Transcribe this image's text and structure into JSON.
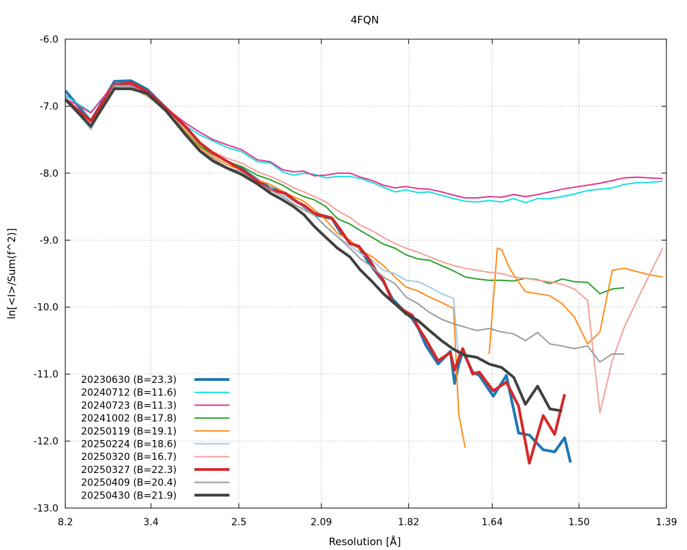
{
  "chart_data": {
    "type": "line",
    "title": "4FQN",
    "xlabel": "Resolution [Å]",
    "ylabel": "ln[<I>/Sum(f^2)]",
    "x_unit_note": "",
    "xlim": [
      0.0148,
      0.5175
    ],
    "ylim": [
      -13.0,
      -6.0
    ],
    "grid": true,
    "legend_position": "bottom-left",
    "x_ticks": [
      "8.2",
      "3.4",
      "2.5",
      "2.09",
      "1.82",
      "1.64",
      "1.50",
      "1.39"
    ],
    "y_ticks": [
      "-6.0",
      "-7.0",
      "-8.0",
      "-9.0",
      "-10.0",
      "-11.0",
      "-12.0",
      "-13.0"
    ],
    "series": [
      {
        "name": "20230630 (B=23.3)",
        "color": "#1f77b4",
        "width": 4,
        "x": [
          0.0149,
          0.0362,
          0.0559,
          0.0697,
          0.0834,
          0.0986,
          0.1151,
          0.1274,
          0.1384,
          0.1507,
          0.1623,
          0.1754,
          0.1864,
          0.1987,
          0.2096,
          0.2144,
          0.2233,
          0.2378,
          0.2452,
          0.2528,
          0.2603,
          0.2688,
          0.2747,
          0.2808,
          0.2885,
          0.2978,
          0.3049,
          0.3102,
          0.3163,
          0.3266,
          0.3369,
          0.3403,
          0.3438,
          0.3472,
          0.3555,
          0.361,
          0.3727,
          0.3837,
          0.3939,
          0.4029,
          0.4145,
          0.4241,
          0.4324,
          0.4373
        ],
        "y": [
          -6.77,
          -7.22,
          -6.63,
          -6.62,
          -6.75,
          -7.02,
          -7.3,
          -7.55,
          -7.7,
          -7.83,
          -7.93,
          -8.1,
          -8.22,
          -8.3,
          -8.44,
          -8.5,
          -8.62,
          -8.68,
          -8.89,
          -9.03,
          -9.11,
          -9.34,
          -9.48,
          -9.62,
          -9.88,
          -10.05,
          -10.17,
          -10.32,
          -10.57,
          -10.85,
          -10.66,
          -11.14,
          -10.86,
          -10.66,
          -10.97,
          -11.02,
          -11.33,
          -11.02,
          -11.88,
          -11.91,
          -12.13,
          -12.16,
          -11.95,
          -12.32
        ]
      },
      {
        "name": "20240712 (B=11.6)",
        "color": "#17dfe0",
        "width": 2,
        "x": [
          0.0149,
          0.0362,
          0.0559,
          0.0697,
          0.0834,
          0.0986,
          0.1151,
          0.1274,
          0.1384,
          0.1507,
          0.1623,
          0.1754,
          0.1864,
          0.1967,
          0.2057,
          0.2144,
          0.2233,
          0.2328,
          0.2425,
          0.2528,
          0.2618,
          0.2715,
          0.2808,
          0.2905,
          0.2998,
          0.3097,
          0.3194,
          0.3294,
          0.3396,
          0.3493,
          0.359,
          0.3693,
          0.3797,
          0.3899,
          0.3996,
          0.4098,
          0.4201,
          0.4303,
          0.4406,
          0.4516,
          0.4619,
          0.4722,
          0.4823,
          0.4929,
          0.5038,
          0.5144
        ],
        "y": [
          -6.84,
          -7.09,
          -6.68,
          -6.7,
          -6.82,
          -7.05,
          -7.29,
          -7.43,
          -7.52,
          -7.62,
          -7.68,
          -7.83,
          -7.85,
          -7.98,
          -8.03,
          -8.0,
          -8.02,
          -8.07,
          -8.05,
          -8.05,
          -8.08,
          -8.14,
          -8.21,
          -8.28,
          -8.25,
          -8.29,
          -8.28,
          -8.33,
          -8.38,
          -8.42,
          -8.43,
          -8.41,
          -8.43,
          -8.38,
          -8.44,
          -8.38,
          -8.38,
          -8.35,
          -8.31,
          -8.26,
          -8.24,
          -8.22,
          -8.17,
          -8.14,
          -8.14,
          -8.12
        ]
      },
      {
        "name": "20240723 (B=11.3)",
        "color": "#e0358f",
        "width": 2,
        "x": [
          0.0149,
          0.0362,
          0.0559,
          0.0697,
          0.0834,
          0.0986,
          0.1151,
          0.1274,
          0.1384,
          0.1507,
          0.1623,
          0.1754,
          0.1864,
          0.1967,
          0.2057,
          0.2144,
          0.2233,
          0.2328,
          0.2425,
          0.2528,
          0.2618,
          0.2715,
          0.2808,
          0.2905,
          0.2998,
          0.3097,
          0.3194,
          0.3294,
          0.3396,
          0.3493,
          0.359,
          0.3693,
          0.3797,
          0.3899,
          0.3996,
          0.4098,
          0.4201,
          0.4303,
          0.4406,
          0.4516,
          0.4619,
          0.4722,
          0.4823,
          0.4929,
          0.5038,
          0.5144
        ],
        "y": [
          -6.88,
          -7.1,
          -6.66,
          -6.68,
          -6.8,
          -7.02,
          -7.25,
          -7.39,
          -7.5,
          -7.58,
          -7.65,
          -7.8,
          -7.83,
          -7.95,
          -7.98,
          -7.97,
          -8.04,
          -8.03,
          -8.0,
          -8.0,
          -8.06,
          -8.11,
          -8.18,
          -8.22,
          -8.2,
          -8.23,
          -8.24,
          -8.28,
          -8.33,
          -8.37,
          -8.37,
          -8.35,
          -8.36,
          -8.32,
          -8.35,
          -8.32,
          -8.28,
          -8.24,
          -8.21,
          -8.18,
          -8.15,
          -8.11,
          -8.07,
          -8.06,
          -8.07,
          -8.08
        ]
      },
      {
        "name": "20241002 (B=17.8)",
        "color": "#2ca02c",
        "width": 2,
        "x": [
          0.0149,
          0.0362,
          0.0559,
          0.0697,
          0.0834,
          0.0986,
          0.1151,
          0.1274,
          0.1384,
          0.1507,
          0.1623,
          0.1754,
          0.1864,
          0.1967,
          0.2057,
          0.2144,
          0.2233,
          0.2328,
          0.2425,
          0.2528,
          0.2618,
          0.2715,
          0.2808,
          0.2905,
          0.2998,
          0.3097,
          0.3194,
          0.3294,
          0.3396,
          0.3493,
          0.359,
          0.3693,
          0.3797,
          0.3899,
          0.3996,
          0.4098,
          0.4201,
          0.4303,
          0.4406,
          0.4516,
          0.4619,
          0.4722,
          0.4823
        ],
        "y": [
          -6.86,
          -7.28,
          -6.71,
          -6.7,
          -6.82,
          -7.06,
          -7.37,
          -7.6,
          -7.72,
          -7.83,
          -7.9,
          -8.03,
          -8.1,
          -8.18,
          -8.28,
          -8.35,
          -8.4,
          -8.5,
          -8.68,
          -8.76,
          -8.86,
          -8.96,
          -9.06,
          -9.12,
          -9.22,
          -9.28,
          -9.3,
          -9.38,
          -9.46,
          -9.55,
          -9.58,
          -9.6,
          -9.6,
          -9.61,
          -9.57,
          -9.59,
          -9.65,
          -9.58,
          -9.62,
          -9.63,
          -9.8,
          -9.73,
          -9.71
        ]
      },
      {
        "name": "20250119 (B=19.1)",
        "color": "#ff8c1a",
        "width": 2,
        "x": [
          0.0149,
          0.0362,
          0.0559,
          0.0697,
          0.0834,
          0.0986,
          0.1151,
          0.1274,
          0.1384,
          0.1507,
          0.1623,
          0.1754,
          0.1864,
          0.1967,
          0.2057,
          0.2144,
          0.2233,
          0.2328,
          0.2425,
          0.2528,
          0.2618,
          0.2715,
          0.2808,
          0.2905,
          0.2998,
          0.3097,
          0.3194,
          0.3294,
          0.3396,
          0.3438,
          0.3493,
          0.3555,
          0.359,
          0.3645,
          0.3693,
          0.3761,
          0.3797,
          0.3858,
          0.3899,
          0.3996,
          0.4098,
          0.4201,
          0.4303,
          0.4406,
          0.4516,
          0.4619,
          0.4722,
          0.4823,
          0.4929,
          0.5038,
          0.5144
        ],
        "y": [
          -6.9,
          -7.3,
          -6.7,
          -6.72,
          -6.85,
          -7.07,
          -7.38,
          -7.62,
          -7.75,
          -7.88,
          -7.95,
          -8.1,
          -8.17,
          -8.27,
          -8.35,
          -8.42,
          -8.55,
          -8.7,
          -8.9,
          -9.0,
          -9.15,
          -9.25,
          -9.38,
          -9.55,
          -9.7,
          -9.76,
          -9.85,
          -9.93,
          -10.02,
          -11.6,
          -12.1,
          null,
          null,
          null,
          -10.7,
          -9.12,
          -9.14,
          -9.4,
          -9.52,
          -9.77,
          -9.8,
          -9.83,
          -9.95,
          -10.15,
          -10.55,
          -10.37,
          -9.45,
          -9.42,
          -9.47,
          -9.52,
          -9.55
        ]
      },
      {
        "name": "20250224 (B=18.6)",
        "color": "#9ecae9",
        "width": 2,
        "x": [
          0.0149,
          0.0362,
          0.0559,
          0.0697,
          0.0834,
          0.0986,
          0.1151,
          0.1274,
          0.1384,
          0.1507,
          0.1623,
          0.1754,
          0.1864,
          0.1967,
          0.2057,
          0.2144,
          0.2233,
          0.2328,
          0.2425,
          0.2528,
          0.2618,
          0.2715,
          0.2808,
          0.2905,
          0.2998,
          0.3097,
          0.3194,
          0.3294,
          0.3396,
          0.3438
        ],
        "y": [
          -6.87,
          -7.35,
          -6.7,
          -6.71,
          -6.84,
          -7.08,
          -7.4,
          -7.65,
          -7.78,
          -7.92,
          -7.98,
          -8.15,
          -8.22,
          -8.32,
          -8.42,
          -8.5,
          -8.63,
          -8.8,
          -8.95,
          -9.08,
          -9.2,
          -9.3,
          -9.45,
          -9.5,
          -9.6,
          -9.62,
          -9.7,
          -9.8,
          -9.87,
          -10.8
        ]
      },
      {
        "name": "20250320 (B=16.7)",
        "color": "#f4a09a",
        "width": 2,
        "x": [
          0.0149,
          0.0362,
          0.0559,
          0.0697,
          0.0834,
          0.0986,
          0.1151,
          0.1274,
          0.1384,
          0.1507,
          0.1623,
          0.1754,
          0.1864,
          0.1967,
          0.2057,
          0.2144,
          0.2233,
          0.2328,
          0.2425,
          0.2528,
          0.2618,
          0.2715,
          0.2808,
          0.2905,
          0.2998,
          0.3097,
          0.3194,
          0.3294,
          0.3396,
          0.3493,
          0.359,
          0.3693,
          0.3797,
          0.3899,
          0.3996,
          0.4098,
          0.4201,
          0.4303,
          0.4406,
          0.4516,
          0.4619,
          0.4722,
          0.4823,
          0.4929,
          0.5038,
          0.5144
        ],
        "y": [
          -6.86,
          -7.27,
          -6.69,
          -6.7,
          -6.82,
          -7.05,
          -7.33,
          -7.56,
          -7.68,
          -7.78,
          -7.85,
          -7.98,
          -8.05,
          -8.13,
          -8.22,
          -8.28,
          -8.35,
          -8.43,
          -8.56,
          -8.66,
          -8.78,
          -8.86,
          -8.96,
          -9.05,
          -9.12,
          -9.18,
          -9.25,
          -9.32,
          -9.38,
          -9.42,
          -9.45,
          -9.48,
          -9.5,
          -9.55,
          -9.57,
          -9.6,
          -9.62,
          -9.66,
          -9.73,
          -9.9,
          -11.58,
          -10.8,
          -10.3,
          -9.9,
          -9.5,
          -9.12
        ]
      },
      {
        "name": "20250327 (B=22.3)",
        "color": "#d62728",
        "width": 4,
        "x": [
          0.0149,
          0.0362,
          0.0559,
          0.0697,
          0.0834,
          0.0986,
          0.1151,
          0.1274,
          0.1384,
          0.1507,
          0.1623,
          0.1754,
          0.1864,
          0.1987,
          0.2096,
          0.2144,
          0.2233,
          0.2378,
          0.2452,
          0.2528,
          0.2603,
          0.2688,
          0.2747,
          0.2808,
          0.2885,
          0.2978,
          0.3049,
          0.3102,
          0.3163,
          0.3266,
          0.3369,
          0.3403,
          0.3438,
          0.3472,
          0.3555,
          0.361,
          0.3727,
          0.3837,
          0.3939,
          0.4029,
          0.4145,
          0.4241,
          0.4324
        ],
        "y": [
          -6.9,
          -7.22,
          -6.68,
          -6.65,
          -6.78,
          -7.02,
          -7.3,
          -7.55,
          -7.7,
          -7.83,
          -7.95,
          -8.12,
          -8.25,
          -8.3,
          -8.44,
          -8.48,
          -8.6,
          -8.67,
          -8.85,
          -9.05,
          -9.09,
          -9.28,
          -9.46,
          -9.6,
          -9.92,
          -10.05,
          -10.12,
          -10.31,
          -10.48,
          -10.8,
          -10.68,
          -10.94,
          -10.77,
          -10.62,
          -11.0,
          -10.97,
          -11.25,
          -11.12,
          -11.48,
          -12.33,
          -11.62,
          -11.9,
          -11.3
        ]
      },
      {
        "name": "20250409 (B=20.4)",
        "color": "#9a9a9a",
        "width": 2,
        "x": [
          0.0149,
          0.0362,
          0.0559,
          0.0697,
          0.0834,
          0.0986,
          0.1151,
          0.1274,
          0.1384,
          0.1507,
          0.1623,
          0.1754,
          0.1864,
          0.1967,
          0.2057,
          0.2144,
          0.2233,
          0.2328,
          0.2425,
          0.2528,
          0.2618,
          0.2715,
          0.2808,
          0.2905,
          0.2998,
          0.3097,
          0.3194,
          0.3294,
          0.3396,
          0.3493,
          0.359,
          0.3693,
          0.3797,
          0.3899,
          0.3996,
          0.4098,
          0.4201,
          0.4303,
          0.4406,
          0.4516,
          0.4619,
          0.4722,
          0.4823
        ],
        "y": [
          -6.88,
          -7.32,
          -6.69,
          -6.7,
          -6.84,
          -7.07,
          -7.4,
          -7.65,
          -7.78,
          -7.92,
          -7.98,
          -8.15,
          -8.25,
          -8.35,
          -8.46,
          -8.55,
          -8.63,
          -8.8,
          -8.95,
          -9.12,
          -9.28,
          -9.4,
          -9.55,
          -9.65,
          -9.85,
          -9.95,
          -10.08,
          -10.18,
          -10.25,
          -10.3,
          -10.35,
          -10.32,
          -10.37,
          -10.4,
          -10.5,
          -10.38,
          -10.55,
          -10.58,
          -10.62,
          -10.58,
          -10.82,
          -10.7,
          -10.7
        ]
      },
      {
        "name": "20250430 (B=21.9)",
        "color": "#404040",
        "width": 4,
        "x": [
          0.0149,
          0.0362,
          0.0559,
          0.0697,
          0.0834,
          0.0986,
          0.1151,
          0.1274,
          0.1384,
          0.1507,
          0.1623,
          0.1754,
          0.1864,
          0.1967,
          0.2057,
          0.2144,
          0.2233,
          0.2328,
          0.2425,
          0.2528,
          0.2618,
          0.2715,
          0.2808,
          0.2905,
          0.2998,
          0.3097,
          0.3194,
          0.3294,
          0.3396,
          0.3493,
          0.359,
          0.3693,
          0.3797,
          0.3899,
          0.3996,
          0.4098,
          0.4201,
          0.4303
        ],
        "y": [
          -6.9,
          -7.3,
          -6.74,
          -6.74,
          -6.81,
          -7.06,
          -7.42,
          -7.67,
          -7.82,
          -7.93,
          -8.02,
          -8.16,
          -8.3,
          -8.4,
          -8.5,
          -8.62,
          -8.8,
          -8.96,
          -9.12,
          -9.25,
          -9.45,
          -9.62,
          -9.8,
          -9.95,
          -10.1,
          -10.2,
          -10.35,
          -10.5,
          -10.63,
          -10.72,
          -10.75,
          -10.85,
          -10.9,
          -11.05,
          -11.45,
          -11.18,
          -11.52,
          -11.55
        ]
      }
    ]
  }
}
